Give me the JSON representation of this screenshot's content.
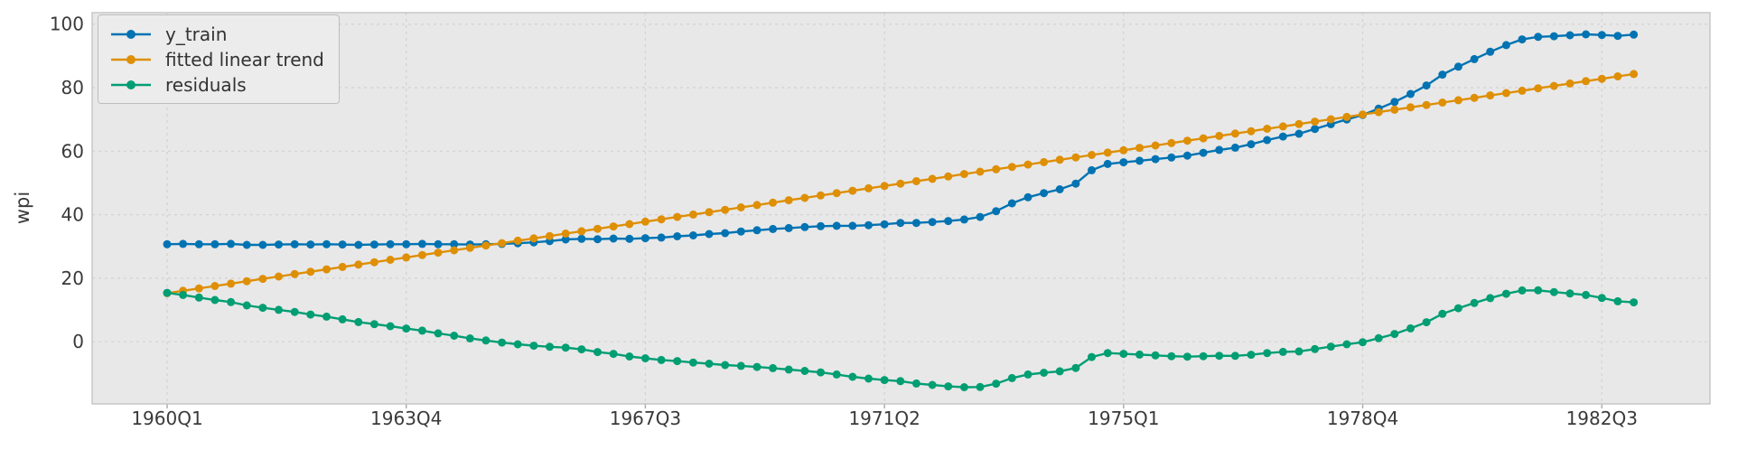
{
  "chart_data": {
    "type": "line",
    "title": "",
    "xlabel": "",
    "ylabel": "wpi",
    "grid": "dashed",
    "legend": {
      "position": "upper left"
    },
    "colors": {
      "plot_bg": "#e8e8e8",
      "grid": "#d2d2d2",
      "frame": "#c4c4c4",
      "tick_text": "#3a3a3a"
    },
    "ylim": [
      -20,
      104
    ],
    "y_ticks": [
      0,
      20,
      40,
      60,
      80,
      100
    ],
    "x_tick_labels": [
      "1960Q1",
      "1963Q4",
      "1967Q3",
      "1971Q2",
      "1975Q1",
      "1978Q4",
      "1982Q3"
    ],
    "x_tick_positions": [
      0,
      15,
      30,
      45,
      60,
      75,
      90
    ],
    "x_range": {
      "start": "1960Q1",
      "end": "1983Q1",
      "freq": "quarterly",
      "n": 93
    },
    "series": [
      {
        "name": "y_train",
        "color": "#0173B2",
        "values": [
          30.7,
          30.8,
          30.7,
          30.7,
          30.8,
          30.5,
          30.5,
          30.6,
          30.7,
          30.6,
          30.7,
          30.6,
          30.5,
          30.6,
          30.7,
          30.7,
          30.8,
          30.7,
          30.7,
          30.6,
          30.7,
          30.8,
          31.0,
          31.3,
          31.7,
          32.2,
          32.4,
          32.3,
          32.5,
          32.4,
          32.6,
          32.8,
          33.2,
          33.5,
          33.9,
          34.2,
          34.7,
          35.1,
          35.5,
          35.8,
          36.1,
          36.4,
          36.5,
          36.5,
          36.7,
          37.0,
          37.4,
          37.4,
          37.7,
          38.0,
          38.5,
          39.3,
          41.1,
          43.6,
          45.5,
          46.8,
          48.0,
          49.8,
          54.0,
          56.0,
          56.5,
          57.0,
          57.5,
          58.0,
          58.6,
          59.5,
          60.4,
          61.1,
          62.2,
          63.5,
          64.6,
          65.5,
          67.0,
          68.5,
          70.0,
          71.4,
          73.4,
          75.5,
          78.0,
          80.7,
          84.1,
          86.6,
          89.0,
          91.3,
          93.4,
          95.2,
          96.0,
          96.2,
          96.5,
          96.8,
          96.6,
          96.3,
          96.7
        ]
      },
      {
        "name": "fitted linear trend",
        "color": "#DE8F05",
        "values": [
          15.3,
          16.05,
          16.8,
          17.55,
          18.3,
          19.05,
          19.8,
          20.55,
          21.3,
          22.05,
          22.8,
          23.55,
          24.3,
          25.05,
          25.8,
          26.55,
          27.3,
          28.05,
          28.8,
          29.55,
          30.3,
          31.05,
          31.8,
          32.55,
          33.3,
          34.05,
          34.8,
          35.55,
          36.3,
          37.05,
          37.8,
          38.55,
          39.3,
          40.05,
          40.8,
          41.55,
          42.3,
          43.05,
          43.8,
          44.55,
          45.3,
          46.05,
          46.8,
          47.55,
          48.3,
          49.05,
          49.8,
          50.55,
          51.3,
          52.05,
          52.8,
          53.55,
          54.3,
          55.05,
          55.8,
          56.55,
          57.3,
          58.05,
          58.8,
          59.55,
          60.3,
          61.05,
          61.8,
          62.55,
          63.3,
          64.05,
          64.8,
          65.55,
          66.3,
          67.05,
          67.8,
          68.55,
          69.3,
          70.05,
          70.8,
          71.55,
          72.3,
          73.05,
          73.8,
          74.55,
          75.3,
          76.05,
          76.8,
          77.55,
          78.3,
          79.05,
          79.8,
          80.55,
          81.3,
          82.05,
          82.8,
          83.55,
          84.3
        ]
      },
      {
        "name": "residuals",
        "color": "#029E73",
        "values": [
          15.4,
          14.75,
          13.9,
          13.15,
          12.5,
          11.45,
          10.7,
          10.05,
          9.4,
          8.55,
          7.9,
          7.05,
          6.2,
          5.55,
          4.9,
          4.15,
          3.5,
          2.65,
          1.9,
          1.05,
          0.4,
          -0.25,
          -0.8,
          -1.25,
          -1.6,
          -1.85,
          -2.4,
          -3.25,
          -3.8,
          -4.65,
          -5.2,
          -5.75,
          -6.1,
          -6.55,
          -6.9,
          -7.35,
          -7.6,
          -7.95,
          -8.3,
          -8.75,
          -9.2,
          -9.65,
          -10.3,
          -11.05,
          -11.6,
          -12.05,
          -12.4,
          -13.15,
          -13.6,
          -14.05,
          -14.3,
          -14.25,
          -13.2,
          -11.45,
          -10.3,
          -9.75,
          -9.3,
          -8.25,
          -4.8,
          -3.55,
          -3.8,
          -4.05,
          -4.3,
          -4.55,
          -4.7,
          -4.55,
          -4.4,
          -4.45,
          -4.1,
          -3.55,
          -3.2,
          -3.05,
          -2.3,
          -1.55,
          -0.8,
          -0.15,
          1.1,
          2.45,
          4.2,
          6.15,
          8.8,
          10.55,
          12.2,
          13.75,
          15.1,
          16.15,
          16.2,
          15.65,
          15.2,
          14.75,
          13.8,
          12.75,
          12.4
        ]
      }
    ]
  }
}
